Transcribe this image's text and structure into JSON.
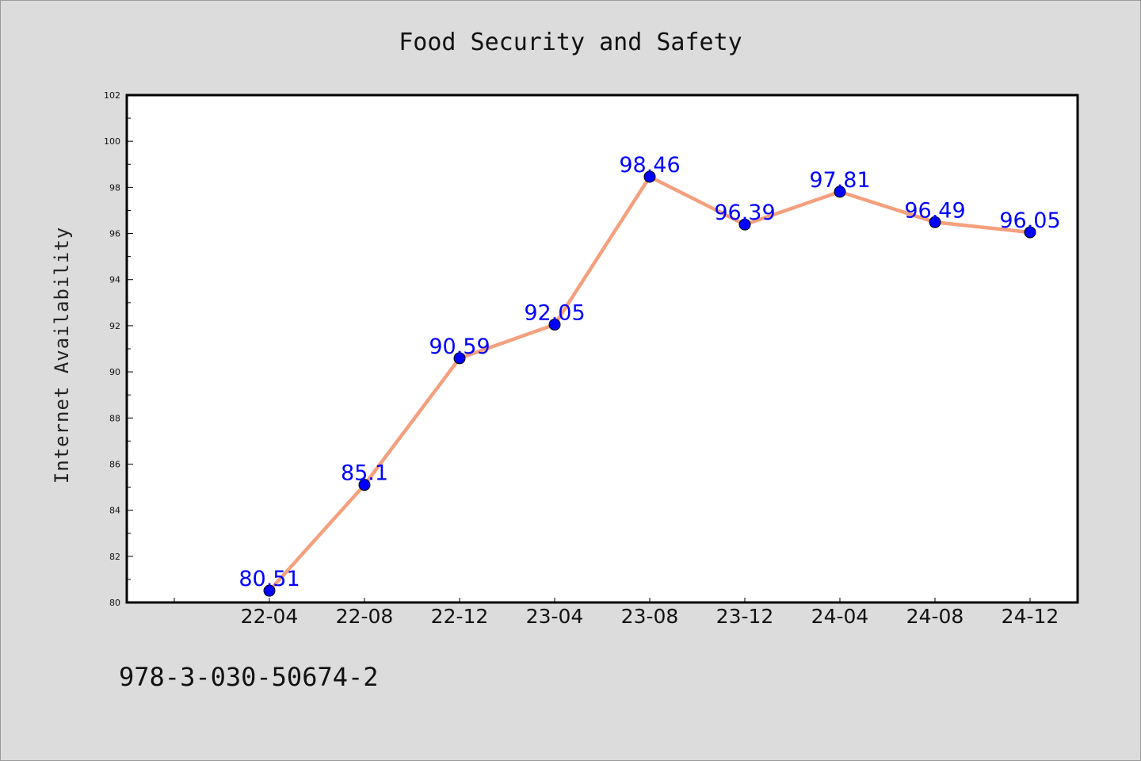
{
  "footnote": "978-3-030-50674-2",
  "colors": {
    "background": "#dcdcdc",
    "plot_area": "#ffffff",
    "line": "#f4a07e",
    "marker": "#0000ff",
    "data_label": "#0000ff"
  },
  "chart_data": {
    "type": "line",
    "title": "Food Security and Safety",
    "xlabel": "",
    "ylabel": "Internet Availability",
    "categories": [
      "22-04",
      "22-08",
      "22-12",
      "23-04",
      "23-08",
      "23-12",
      "24-04",
      "24-08",
      "24-12"
    ],
    "series": [
      {
        "values": [
          80.51,
          85.1,
          90.59,
          92.05,
          98.46,
          96.39,
          97.81,
          96.49,
          96.05
        ],
        "labels": [
          "80.51",
          "85.1",
          "90.59",
          "92.05",
          "98.46",
          "96.39",
          "97.81",
          "96.49",
          "96.05"
        ]
      }
    ],
    "ylim": [
      80,
      102
    ],
    "yticks": [
      80,
      82,
      84,
      86,
      88,
      90,
      92,
      94,
      96,
      98,
      100,
      102
    ],
    "grid": false,
    "legend": "none"
  }
}
